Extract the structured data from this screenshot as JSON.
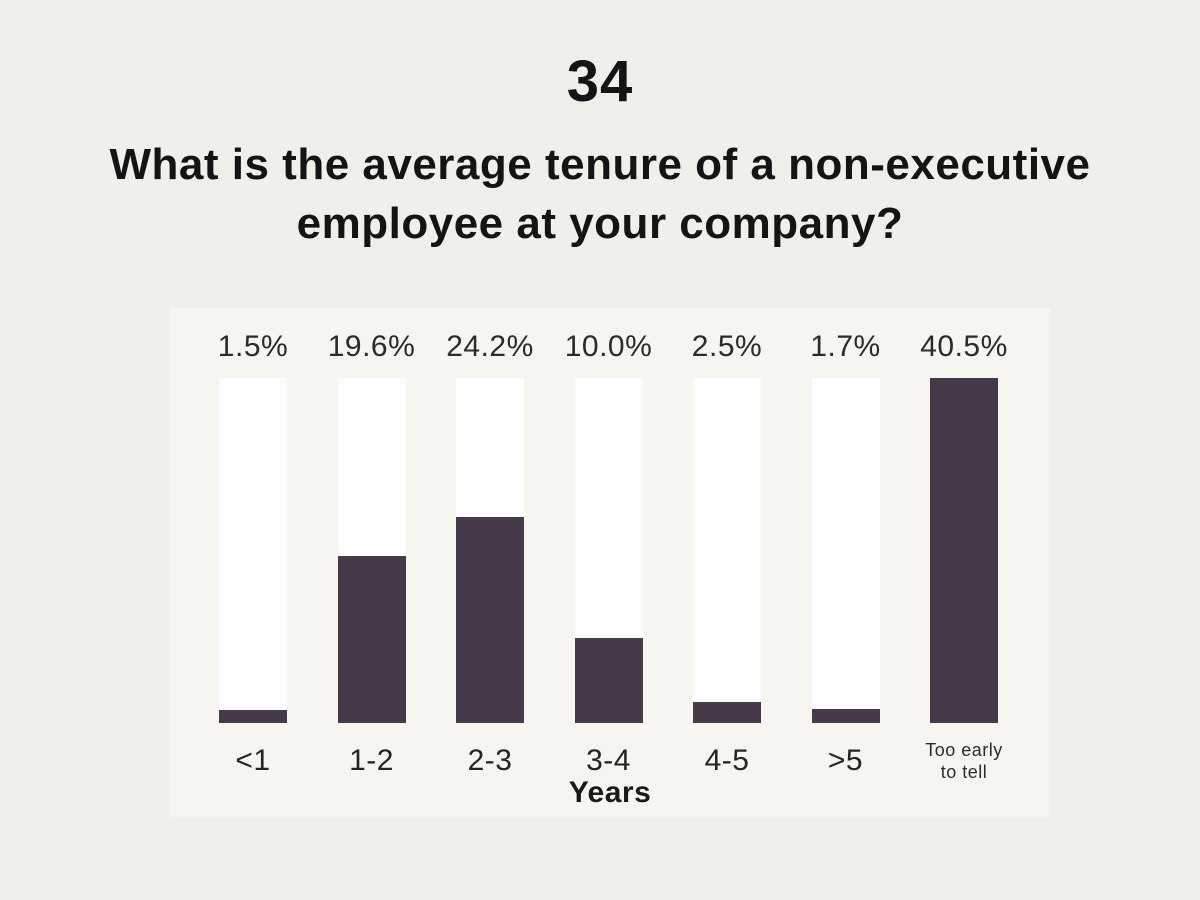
{
  "page": {
    "number": "34",
    "title_line1": "What is the average tenure of a non-executive",
    "title_line2": "employee at your company?"
  },
  "chart_data": {
    "type": "bar",
    "title": "What is the average tenure of a non-executive employee at your company?",
    "categories": [
      "<1",
      "1-2",
      "2-3",
      "3-4",
      "4-5",
      ">5",
      "Too early to tell"
    ],
    "values": [
      1.5,
      19.6,
      24.2,
      10.0,
      2.5,
      1.7,
      40.5
    ],
    "value_labels": [
      "1.5%",
      "19.6%",
      "24.2%",
      "10.0%",
      "2.5%",
      "1.7%",
      "40.5%"
    ],
    "xlabel": "Years",
    "ylabel": "",
    "ylim": [
      0,
      40.5
    ],
    "grid": false,
    "legend": false,
    "bar_color": "#463a4a",
    "track_color": "#fdfdfd",
    "panel_color": "#f6f5f0",
    "background_color": "#f1efe9"
  }
}
